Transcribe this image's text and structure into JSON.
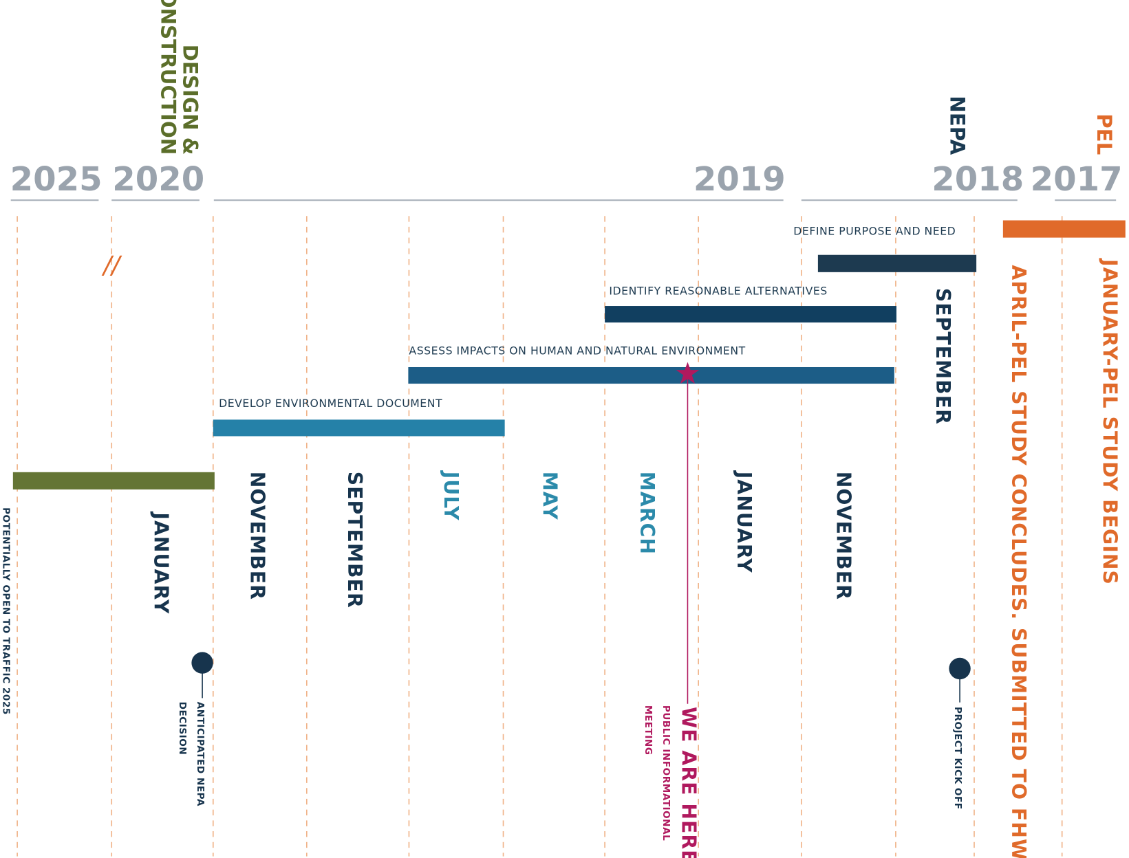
{
  "years": [
    "2025",
    "2020",
    "2019",
    "2018",
    "2017"
  ],
  "phases": {
    "design": [
      "DESIGN &",
      "CONSTRUCTION"
    ],
    "nepa": "NEPA",
    "pel": "PEL"
  },
  "break_mark": "//",
  "tasks": [
    "DEFINE PURPOSE AND NEED",
    "IDENTIFY REASONABLE ALTERNATIVES",
    "ASSESS IMPACTS ON HUMAN AND NATURAL ENVIRONMENT",
    "DEVELOP ENVIRONMENTAL DOCUMENT"
  ],
  "months": [
    "JANUARY",
    "NOVEMBER",
    "SEPTEMBER",
    "JULY",
    "MAY",
    "MARCH",
    "JANUARY",
    "NOVEMBER",
    "SEPTEMBER"
  ],
  "pel_notes": [
    "APRIL-PEL STUDY CONCLUDES. SUBMITTED TO FHWA",
    "JANUARY-PEL STUDY BEGINS"
  ],
  "milestones": {
    "open": "POTENTIALLY OPEN TO TRAFFIC 2025",
    "nepa_decision": [
      "ANTICIPATED NEPA",
      "DECISION"
    ],
    "kickoff": "PROJECT KICK OFF",
    "we_are_here": "WE ARE HERE",
    "meeting": [
      "PUBLIC INFORMATIONAL",
      "MEETING"
    ]
  }
}
